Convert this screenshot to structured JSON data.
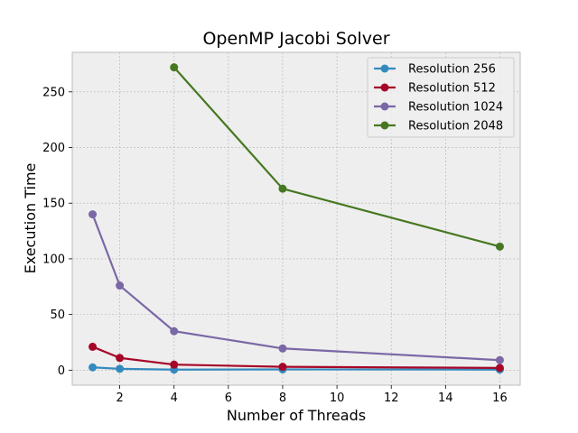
{
  "chart_data": {
    "type": "line",
    "title": "OpenMP Jacobi Solver",
    "xlabel": "Number of Threads",
    "ylabel": "Execution Time",
    "xlim": [
      0.25,
      16.75
    ],
    "ylim": [
      -13.5,
      285.5
    ],
    "xticks": [
      2,
      4,
      6,
      8,
      10,
      12,
      14,
      16
    ],
    "yticks": [
      0,
      50,
      100,
      150,
      200,
      250
    ],
    "grid": true,
    "legend_position": "top-right",
    "series": [
      {
        "name": "Resolution 256",
        "color": "#348ABD",
        "x": [
          1,
          2,
          4,
          8,
          16
        ],
        "y": [
          2.5,
          1.2,
          0.5,
          0.7,
          0.5
        ]
      },
      {
        "name": "Resolution 512",
        "color": "#A60628",
        "x": [
          1,
          2,
          4,
          8,
          16
        ],
        "y": [
          21,
          11,
          5,
          3,
          2
        ]
      },
      {
        "name": "Resolution 1024",
        "color": "#7A68A6",
        "x": [
          1,
          2,
          4,
          8,
          16
        ],
        "y": [
          140,
          76,
          35,
          19.5,
          9
        ]
      },
      {
        "name": "Resolution 2048",
        "color": "#467821",
        "x": [
          4,
          8,
          16
        ],
        "y": [
          272,
          163,
          111
        ]
      }
    ]
  }
}
